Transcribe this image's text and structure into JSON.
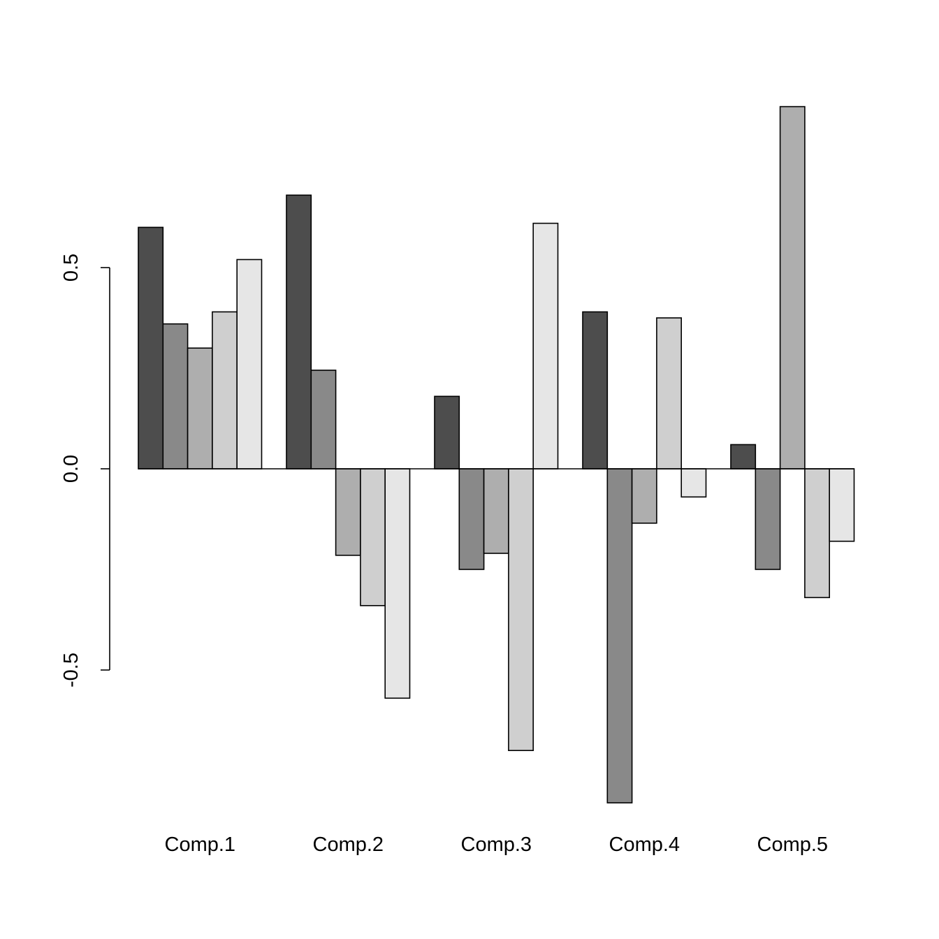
{
  "chart_data": {
    "type": "bar",
    "layout": "grouped",
    "categories": [
      "Comp.1",
      "Comp.2",
      "Comp.3",
      "Comp.4",
      "Comp.5"
    ],
    "series": [
      {
        "color": "#4d4d4d",
        "values": [
          0.6,
          0.68,
          0.18,
          0.39,
          0.06
        ]
      },
      {
        "color": "#898989",
        "values": [
          0.36,
          0.245,
          -0.25,
          -0.83,
          -0.25
        ]
      },
      {
        "color": "#aeaeae",
        "values": [
          0.3,
          -0.215,
          -0.21,
          -0.135,
          0.9
        ]
      },
      {
        "color": "#cfcfcf",
        "values": [
          0.39,
          -0.34,
          -0.7,
          0.375,
          -0.32
        ]
      },
      {
        "color": "#e6e6e6",
        "values": [
          0.52,
          -0.57,
          0.61,
          -0.07,
          -0.18
        ]
      }
    ],
    "yaxis": {
      "ticks": [
        -0.5,
        0.0,
        0.5
      ],
      "tick_labels": [
        "-0.5",
        "0.0",
        "0.5"
      ]
    },
    "ylim": [
      -0.83,
      0.9
    ],
    "grid": false,
    "legend": "none"
  }
}
